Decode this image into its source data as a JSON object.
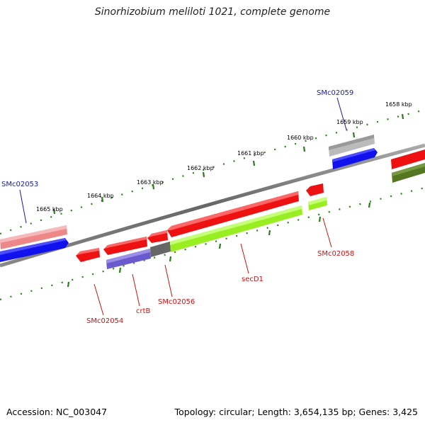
{
  "title": "Sinorhizobium meliloti 1021, complete genome",
  "footer": {
    "accession": "Accession: NC_003047",
    "summary": "Topology: circular; Length: 3,654,135 bp; Genes: 3,425"
  },
  "kbp_labels": [
    {
      "id": "1665",
      "text": "1665 kbp"
    },
    {
      "id": "1664",
      "text": "1664 kbp"
    },
    {
      "id": "1663",
      "text": "1663 kbp"
    },
    {
      "id": "1662",
      "text": "1662 kbp"
    },
    {
      "id": "1661",
      "text": "1661 kbp"
    },
    {
      "id": "1660",
      "text": "1660 kbp"
    },
    {
      "id": "1659",
      "text": "1659 kbp"
    },
    {
      "id": "1658",
      "text": "1658 kbp"
    }
  ],
  "gene_labels": [
    {
      "id": "SMc02053",
      "text": "SMc02053",
      "strand": "forward"
    },
    {
      "id": "SMc02059",
      "text": "SMc02059",
      "strand": "forward"
    },
    {
      "id": "SMc02054",
      "text": "SMc02054",
      "strand": "reverse"
    },
    {
      "id": "crtB",
      "text": "crtB",
      "strand": "reverse"
    },
    {
      "id": "SMc02056",
      "text": "SMc02056",
      "strand": "reverse"
    },
    {
      "id": "secD1",
      "text": "secD1",
      "strand": "reverse"
    },
    {
      "id": "SMc02058",
      "text": "SMc02058",
      "strand": "reverse"
    }
  ],
  "colors": {
    "forward_label": "#1a1aa8",
    "reverse_label": "#cc1111",
    "backbone": "#777777",
    "tick": "#2a7d1a",
    "tick_label": "#000000",
    "cds_red": "#ee1111",
    "cds_blue": "#1111ee",
    "cds_pink": "#ee8888",
    "cds_grey": "#bbbbbb",
    "cds_dark_grey": "#666666",
    "cds_purple": "#6a5acd",
    "cds_green": "#99ee22",
    "cds_olive": "#557722"
  }
}
